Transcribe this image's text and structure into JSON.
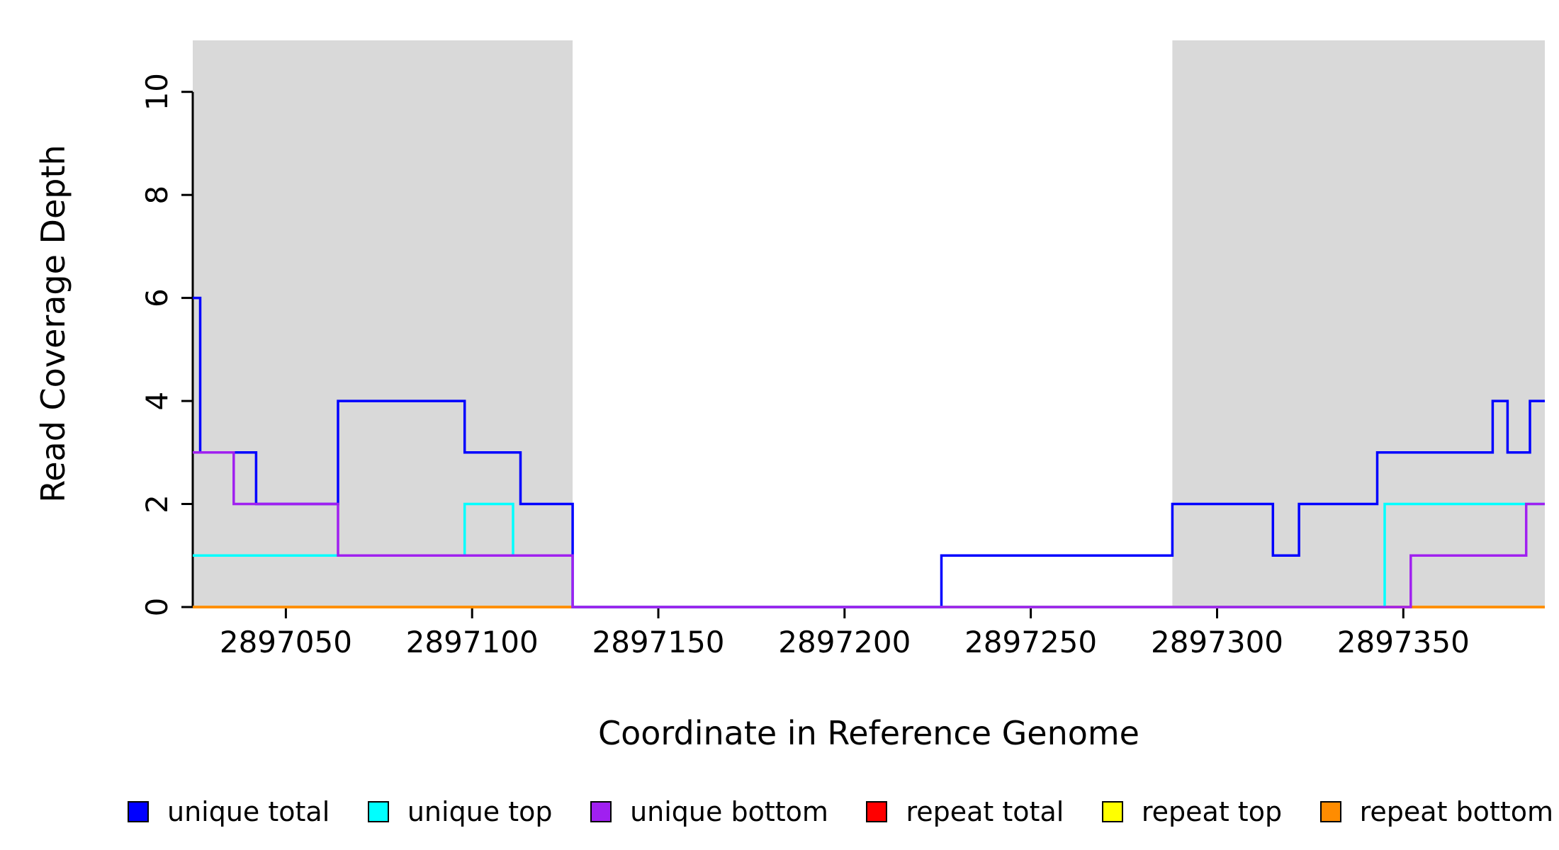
{
  "chart_data": {
    "type": "line",
    "step": true,
    "title": "",
    "xlabel": "Coordinate in Reference Genome",
    "ylabel": "Read Coverage Depth",
    "xlim": [
      2897025,
      2897388
    ],
    "ylim": [
      0,
      11
    ],
    "x_ticks": [
      2897050,
      2897100,
      2897150,
      2897200,
      2897250,
      2897300,
      2897350
    ],
    "y_ticks": [
      0,
      2,
      4,
      6,
      8,
      10
    ],
    "grid": false,
    "legend_position": "bottom",
    "shaded_regions": [
      {
        "x0": 2897025,
        "x1": 2897127,
        "color": "#d9d9d9"
      },
      {
        "x0": 2897288,
        "x1": 2897388,
        "color": "#d9d9d9"
      }
    ],
    "series": [
      {
        "name": "unique total",
        "color": "#0000ff",
        "points": [
          [
            2897025,
            6
          ],
          [
            2897027,
            3
          ],
          [
            2897042,
            2
          ],
          [
            2897064,
            4
          ],
          [
            2897098,
            3
          ],
          [
            2897113,
            2
          ],
          [
            2897127,
            0
          ],
          [
            2897226,
            1
          ],
          [
            2897288,
            2
          ],
          [
            2897315,
            1
          ],
          [
            2897322,
            2
          ],
          [
            2897343,
            3
          ],
          [
            2897374,
            4
          ],
          [
            2897378,
            3
          ],
          [
            2897384,
            4
          ]
        ]
      },
      {
        "name": "unique top",
        "color": "#00ffff",
        "points": [
          [
            2897025,
            1
          ],
          [
            2897098,
            2
          ],
          [
            2897111,
            1
          ],
          [
            2897127,
            0
          ],
          [
            2897345,
            2
          ]
        ]
      },
      {
        "name": "unique bottom",
        "color": "#a020f0",
        "points": [
          [
            2897025,
            3
          ],
          [
            2897036,
            2
          ],
          [
            2897064,
            1
          ],
          [
            2897127,
            0
          ],
          [
            2897352,
            1
          ],
          [
            2897383,
            2
          ]
        ]
      },
      {
        "name": "repeat total",
        "color": "#ff0000",
        "points": [
          [
            2897025,
            0
          ]
        ]
      },
      {
        "name": "repeat top",
        "color": "#ffff00",
        "points": [
          [
            2897025,
            0
          ]
        ]
      },
      {
        "name": "repeat bottom",
        "color": "#ff8c00",
        "points": [
          [
            2897025,
            0
          ]
        ]
      }
    ]
  }
}
